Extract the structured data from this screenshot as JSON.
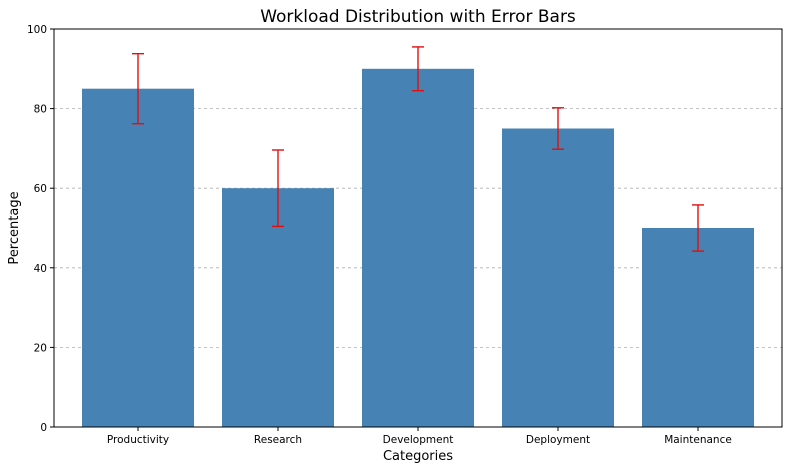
{
  "chart_data": {
    "type": "bar",
    "title": "Workload Distribution with Error Bars",
    "xlabel": "Categories",
    "ylabel": "Percentage",
    "categories": [
      "Productivity",
      "Research",
      "Development",
      "Deployment",
      "Maintenance"
    ],
    "values": [
      85,
      60,
      90,
      75,
      50
    ],
    "errors": [
      8.8,
      9.6,
      5.5,
      5.2,
      5.8
    ],
    "ylim": [
      0,
      100
    ],
    "yticks": [
      0,
      20,
      40,
      60,
      80,
      100
    ],
    "grid": "y, dashed",
    "bar_color": "#4682b4",
    "error_color": "#e01010"
  }
}
